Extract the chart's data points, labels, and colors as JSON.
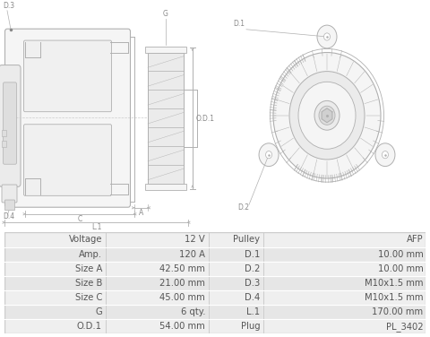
{
  "table_rows": [
    [
      "Voltage",
      "12 V",
      "Pulley",
      "AFP"
    ],
    [
      "Amp.",
      "120 A",
      "D.1",
      "10.00 mm"
    ],
    [
      "Size A",
      "42.50 mm",
      "D.2",
      "10.00 mm"
    ],
    [
      "Size B",
      "21.00 mm",
      "D.3",
      "M10x1.5 mm"
    ],
    [
      "Size C",
      "45.00 mm",
      "D.4",
      "M10x1.5 mm"
    ],
    [
      "G",
      "6 qty.",
      "L.1",
      "170.00 mm"
    ],
    [
      "O.D.1",
      "54.00 mm",
      "Plug",
      "PL_3402"
    ]
  ],
  "bg": "#ffffff",
  "line_color": "#b0b0b0",
  "label_color": "#888888",
  "fill_light": "#f5f5f5",
  "fill_mid": "#ebebeb",
  "fill_dark": "#dedede",
  "table_odd": "#efefef",
  "table_even": "#e6e6e6",
  "table_text": "#555555",
  "table_border": "#cccccc",
  "font_size_label": 5.5,
  "font_size_table": 7.2
}
